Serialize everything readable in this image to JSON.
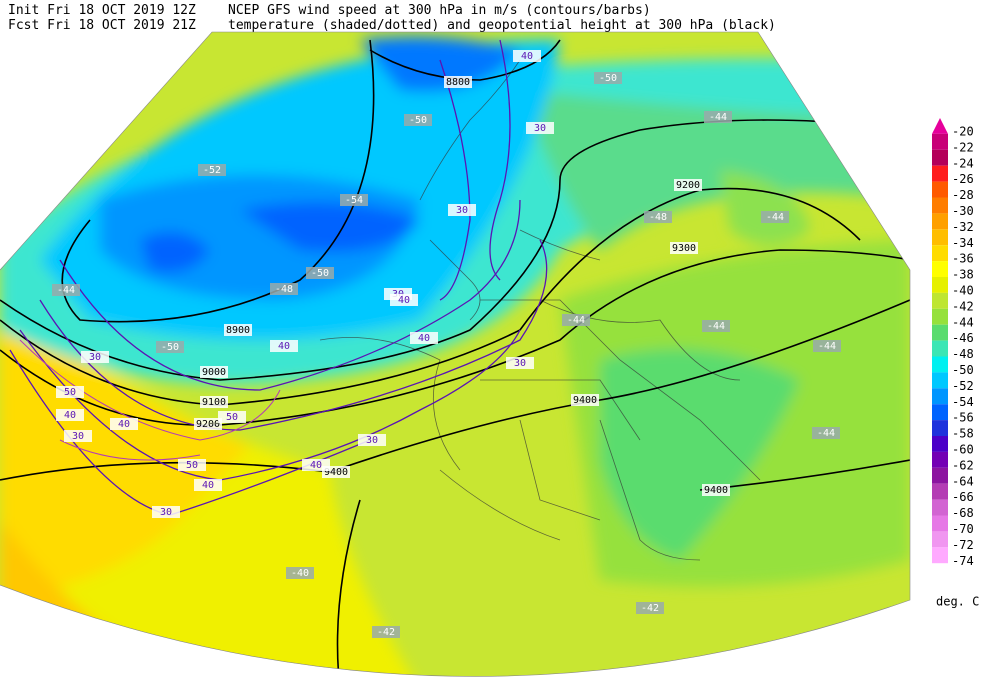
{
  "header": {
    "init": "Init  Fri 18 OCT 2019 12Z",
    "forecast": "Fcst Fri 18 OCT 2019 21Z",
    "title": "NCEP GFS wind speed at 300 hPa in m/s (contours/barbs)",
    "subtitle": "temperature (shaded/dotted) and geopotential height at 300 hPa (black)"
  },
  "colorbar": {
    "levels": [
      -20,
      -22,
      -24,
      -26,
      -28,
      -30,
      -32,
      -34,
      -36,
      -38,
      -40,
      -42,
      -44,
      -46,
      -48,
      -50,
      -52,
      -54,
      -56,
      -58,
      -60,
      -62,
      -64,
      -66,
      -68,
      -70,
      -72,
      -74
    ],
    "colors": [
      "#e6009b",
      "#c80078",
      "#b4005a",
      "#ff1e1e",
      "#ff5a00",
      "#ff7d00",
      "#ffa000",
      "#ffbe00",
      "#ffdc00",
      "#ffff00",
      "#e6f000",
      "#bee632",
      "#96e13c",
      "#5adc6e",
      "#3ce6b4",
      "#00f0f0",
      "#00c8ff",
      "#0096ff",
      "#0064ff",
      "#1e32dc",
      "#4b00c8",
      "#7300b4",
      "#8c14a0",
      "#b43cb4",
      "#d264d2",
      "#e678e6",
      "#f096f0",
      "#ffaaff"
    ],
    "unit": "deg. C"
  },
  "height_labels": [
    "8800",
    "8900",
    "9000",
    "9100",
    "9200",
    "9200",
    "9300",
    "9400",
    "9400",
    "9400"
  ],
  "wind_labels": [
    "40",
    "30",
    "30",
    "30",
    "40",
    "40",
    "40",
    "30",
    "50",
    "40",
    "40",
    "30",
    "50",
    "30",
    "40",
    "50",
    "40",
    "30",
    "30"
  ],
  "temperature_labels": [
    "-50",
    "-50",
    "-52",
    "-54",
    "-50",
    "-48",
    "-48",
    "-44",
    "-44",
    "-44",
    "-44",
    "-44",
    "-44",
    "-44",
    "-50",
    "-40",
    "-42",
    "-42"
  ]
}
